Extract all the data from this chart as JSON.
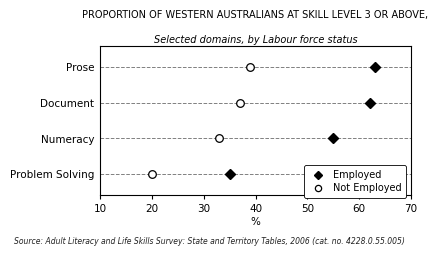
{
  "title_line1": "PROPORTION OF WESTERN AUSTRALIANS AT SKILL LEVEL 3 OR ABOVE,",
  "title_line2": "Selected domains, by Labour force status",
  "categories": [
    "Problem Solving",
    "Numeracy",
    "Document",
    "Prose"
  ],
  "employed": [
    35,
    55,
    62,
    63
  ],
  "not_employed": [
    20,
    33,
    37,
    39
  ],
  "xlabel": "%",
  "xlim": [
    10,
    70
  ],
  "xticks": [
    10,
    20,
    30,
    40,
    50,
    60,
    70
  ],
  "source_text": "Source: Adult Literacy and Life Skills Survey: State and Territory Tables, 2006 (cat. no. 4228.0.55.005)",
  "bg_color": "#ffffff",
  "marker_color": "#000000",
  "title_fontsize": 7.0,
  "title2_fontsize": 7.0,
  "axis_fontsize": 7.5,
  "tick_fontsize": 7.5,
  "source_fontsize": 5.5,
  "legend_fontsize": 7.0
}
